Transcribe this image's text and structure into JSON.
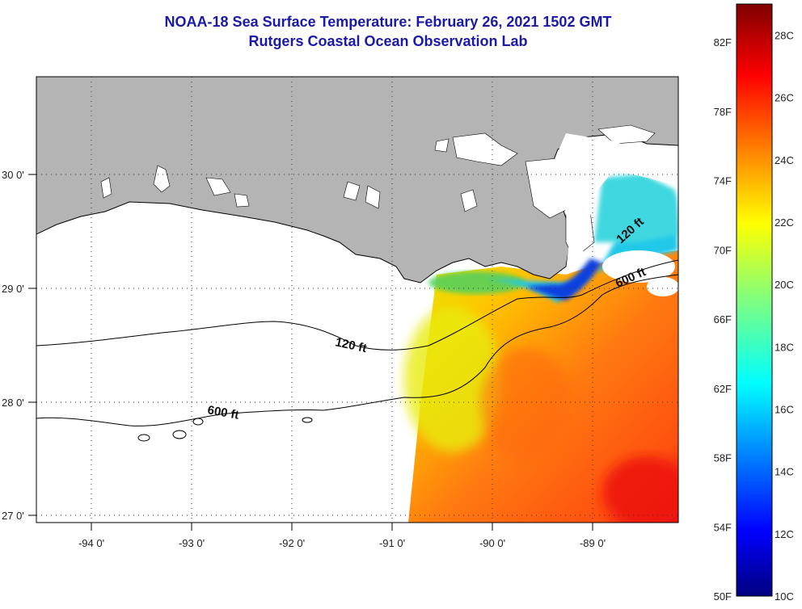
{
  "title": {
    "line1": "NOAA-18 Sea Surface Temperature:  February 26, 2021 1502 GMT",
    "line2": "Rutgers Coastal Ocean Observation Lab"
  },
  "map": {
    "longitude_labels": [
      "-94 0'",
      "-93 0'",
      "-92 0'",
      "-91 0'",
      "-90 0'",
      "-89 0'"
    ],
    "latitude_labels": [
      "30 0'",
      "29 0'",
      "28 0'",
      "27 0'"
    ],
    "contour_labels": {
      "c120_west": "120 ft",
      "c600_west": "600 ft",
      "c120_east": "120 ft",
      "c600_east": "600 ft"
    },
    "colors": {
      "land": "#b4b4b4",
      "water_nodata": "#ffffff",
      "contour": "#000000"
    }
  },
  "colorbar": {
    "fahrenheit_labels": [
      "82F",
      "78F",
      "74F",
      "70F",
      "66F",
      "62F",
      "58F",
      "54F",
      "50F"
    ],
    "celsius_labels": [
      "28C",
      "26C",
      "24C",
      "22C",
      "20C",
      "18C",
      "16C",
      "14C",
      "12C",
      "10C"
    ],
    "range_celsius": [
      10,
      29
    ],
    "colormap": "jet"
  }
}
